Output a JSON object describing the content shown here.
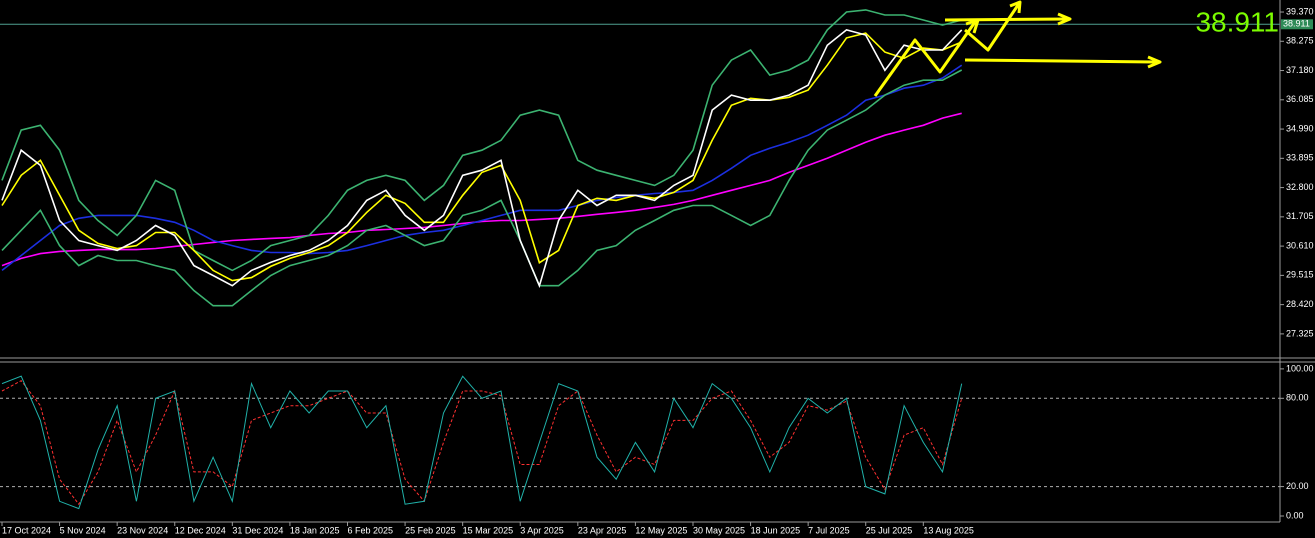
{
  "chart_data": [
    {
      "type": "line",
      "categories": [
        "17 Oct 2024",
        null,
        null,
        "5 Nov 2024",
        null,
        null,
        "23 Nov 2024",
        null,
        null,
        "12 Dec 2024",
        null,
        null,
        "31 Dec 2024",
        null,
        null,
        "18 Jan 2025",
        null,
        null,
        "6 Feb 2025",
        null,
        null,
        "25 Feb 2025",
        null,
        null,
        "15 Mar 2025",
        null,
        null,
        "3 Apr 2025",
        null,
        null,
        "23 Apr 2025",
        null,
        null,
        "12 May 2025",
        null,
        null,
        "30 May 2025",
        null,
        null,
        "18 Jun 2025",
        null,
        null,
        "7 Jul 2025",
        null,
        null,
        "25 Jul 2025",
        null,
        null,
        "13 Aug 2025",
        null,
        null,
        null,
        null,
        null,
        null,
        null,
        null,
        null,
        null,
        null,
        null,
        null,
        null,
        null,
        null,
        null,
        null
      ],
      "ylim": [
        26.46,
        39.82
      ],
      "yticks": [
        27.325,
        {
          "value": 28.42,
          "label": "28.420"
        },
        29.515,
        {
          "value": 30.61,
          "label": "30.610"
        },
        31.705,
        {
          "value": 32.8,
          "label": "32.800"
        },
        33.895,
        {
          "value": 34.99,
          "label": "34.990"
        },
        36.085,
        {
          "value": 37.18,
          "label": "37.180"
        },
        38.275,
        {
          "value": 39.37,
          "label": "39.370"
        }
      ],
      "last_price": 38.911,
      "series": [
        {
          "color": "#ff00ff",
          "values": [
            29.88,
            30.15,
            30.33,
            30.41,
            30.45,
            30.48,
            30.48,
            30.48,
            30.52,
            30.6,
            30.67,
            30.75,
            30.82,
            30.86,
            30.9,
            30.93,
            31.01,
            31.08,
            31.12,
            31.2,
            31.23,
            31.27,
            31.31,
            31.38,
            31.46,
            31.53,
            31.57,
            31.57,
            31.61,
            31.65,
            31.72,
            31.8,
            31.87,
            31.95,
            32.06,
            32.17,
            32.32,
            32.51,
            32.7,
            32.88,
            33.07,
            33.37,
            33.63,
            33.9,
            34.2,
            34.5,
            34.76,
            34.95,
            35.13,
            35.4,
            35.58,
            null,
            null,
            null,
            null,
            null,
            null,
            null,
            null,
            null,
            null,
            null,
            null,
            null,
            null,
            null,
            null
          ]
        },
        {
          "color": "#1c2fe0",
          "values": [
            29.7,
            30.26,
            30.82,
            31.38,
            31.65,
            31.76,
            31.76,
            31.76,
            31.65,
            31.5,
            31.2,
            30.82,
            30.63,
            30.45,
            30.37,
            30.37,
            30.33,
            30.37,
            30.45,
            30.63,
            30.82,
            31.01,
            31.12,
            31.2,
            31.38,
            31.57,
            31.76,
            31.95,
            31.95,
            31.95,
            32.13,
            32.32,
            32.43,
            32.51,
            32.58,
            32.62,
            32.7,
            33.07,
            33.52,
            34.01,
            34.27,
            34.5,
            34.76,
            35.13,
            35.51,
            36.07,
            36.26,
            36.52,
            36.63,
            36.9,
            37.38,
            null,
            null,
            null,
            null,
            null,
            null,
            null,
            null,
            null,
            null,
            null,
            null,
            null,
            null,
            null,
            null
          ]
        },
        {
          "color": "#3cb371",
          "values": [
            33.07,
            34.95,
            35.13,
            34.2,
            32.32,
            31.57,
            31.01,
            31.76,
            33.07,
            32.7,
            30.45,
            30.07,
            29.7,
            30.07,
            30.63,
            30.82,
            31.01,
            31.76,
            32.7,
            33.07,
            33.26,
            33.07,
            32.32,
            32.88,
            34.01,
            34.2,
            34.57,
            35.51,
            35.7,
            35.51,
            33.82,
            33.45,
            33.26,
            33.07,
            32.88,
            33.26,
            34.2,
            36.63,
            37.57,
            37.95,
            37.01,
            37.2,
            37.57,
            38.7,
            39.37,
            39.45,
            39.26,
            39.26,
            39.07,
            38.88,
            39.07,
            null,
            null,
            null,
            null,
            null,
            null,
            null,
            null,
            null,
            null,
            null,
            null,
            null,
            null,
            null,
            null
          ]
        },
        {
          "color": "#3cb371",
          "values": [
            30.45,
            31.2,
            31.95,
            30.63,
            29.88,
            30.26,
            30.07,
            30.07,
            29.88,
            29.7,
            28.95,
            28.38,
            28.38,
            28.95,
            29.51,
            29.88,
            30.07,
            30.26,
            30.63,
            31.2,
            31.38,
            31.01,
            30.63,
            30.82,
            31.76,
            31.95,
            32.32,
            30.82,
            29.13,
            29.13,
            29.7,
            30.45,
            30.63,
            31.2,
            31.57,
            31.95,
            32.13,
            32.13,
            31.76,
            31.38,
            31.76,
            33.07,
            34.2,
            34.95,
            35.32,
            35.7,
            36.26,
            36.63,
            36.82,
            36.82,
            37.2,
            null,
            null,
            null,
            null,
            null,
            null,
            null,
            null,
            null,
            null,
            null,
            null,
            null,
            null,
            null,
            null
          ]
        },
        {
          "color": "#ffff00",
          "values": [
            32.13,
            33.26,
            33.82,
            32.51,
            31.2,
            30.71,
            30.52,
            30.63,
            31.12,
            31.12,
            30.45,
            29.7,
            29.32,
            29.43,
            29.85,
            30.15,
            30.37,
            30.63,
            31.12,
            31.87,
            32.51,
            32.21,
            31.5,
            31.5,
            32.51,
            33.37,
            33.63,
            32.32,
            29.99,
            30.45,
            32.13,
            32.4,
            32.32,
            32.51,
            32.4,
            32.62,
            33.07,
            34.57,
            35.88,
            36.14,
            36.07,
            36.18,
            36.45,
            37.38,
            38.4,
            38.58,
            37.87,
            37.64,
            38.02,
            37.95,
            38.25,
            null,
            null,
            null,
            null,
            null,
            null,
            null,
            null,
            null,
            null,
            null,
            null,
            null,
            null,
            null,
            null
          ]
        },
        {
          "color": "#ffffff",
          "values": [
            32.32,
            34.2,
            33.63,
            31.57,
            30.82,
            30.63,
            30.45,
            30.82,
            31.38,
            31.01,
            29.88,
            29.51,
            29.13,
            29.7,
            30.0,
            30.26,
            30.45,
            30.82,
            31.38,
            32.32,
            32.7,
            31.76,
            31.2,
            31.76,
            33.26,
            33.45,
            33.82,
            30.82,
            29.13,
            31.57,
            32.7,
            32.13,
            32.51,
            32.51,
            32.32,
            32.88,
            33.26,
            35.7,
            36.26,
            36.07,
            36.07,
            36.26,
            36.63,
            38.13,
            38.7,
            38.51,
            37.19,
            38.13,
            37.95,
            37.95,
            38.7,
            null,
            null,
            null,
            null,
            null,
            null,
            null,
            null,
            null,
            null,
            null,
            null,
            null,
            null,
            null,
            null
          ]
        }
      ]
    },
    {
      "type": "line",
      "ylim": [
        -3.4,
        104
      ],
      "yticks": [
        {
          "value": 0,
          "label": "0.00"
        },
        {
          "value": 20,
          "label": "20.00"
        },
        {
          "value": 80,
          "label": "80.00"
        },
        {
          "value": 100,
          "label": "100.00"
        }
      ],
      "series": [
        {
          "color": "#ff3030",
          "dashed": true,
          "values": [
            85,
            92,
            75,
            25,
            8,
            30,
            65,
            30,
            55,
            85,
            30,
            30,
            20,
            65,
            70,
            75,
            75,
            80,
            85,
            70,
            70,
            25,
            10,
            50,
            85,
            85,
            82,
            35,
            35,
            75,
            85,
            55,
            30,
            40,
            35,
            65,
            65,
            80,
            85,
            65,
            40,
            50,
            75,
            72,
            78,
            40,
            18,
            55,
            60,
            35,
            80,
            null,
            null,
            null,
            null,
            null,
            null,
            null,
            null,
            null,
            null,
            null,
            null,
            null,
            null,
            null,
            null
          ]
        },
        {
          "color": "#20b2aa",
          "dashed": false,
          "values": [
            90,
            95,
            65,
            10,
            5,
            45,
            75,
            10,
            80,
            85,
            10,
            40,
            10,
            90,
            60,
            85,
            70,
            85,
            85,
            60,
            75,
            8,
            10,
            70,
            95,
            80,
            85,
            10,
            50,
            90,
            85,
            40,
            25,
            50,
            30,
            80,
            60,
            90,
            80,
            60,
            30,
            60,
            80,
            70,
            80,
            20,
            15,
            75,
            50,
            30,
            90,
            null,
            null,
            null,
            null,
            null,
            null,
            null,
            null,
            null,
            null,
            null,
            null,
            null,
            null,
            null,
            null
          ]
        }
      ]
    }
  ]
}
